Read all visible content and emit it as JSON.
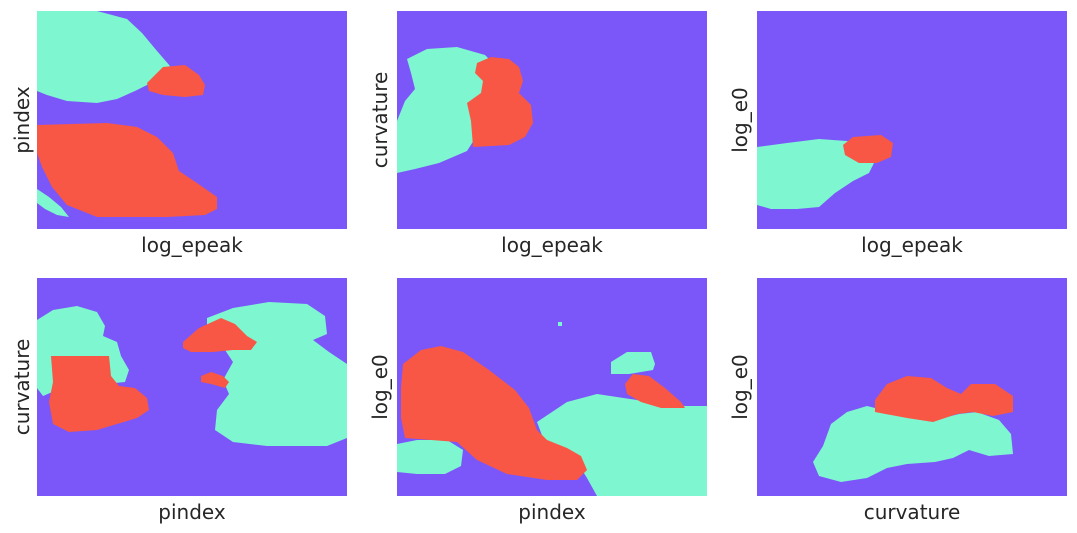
{
  "colors": {
    "background": "#7B57FA",
    "region_1": "#7EF6D0",
    "region_2": "#F85745"
  },
  "chart_data": [
    {
      "type": "heatmap",
      "xlabel": "log_epeak",
      "ylabel": "pindex",
      "levels": [
        0,
        1,
        2
      ]
    },
    {
      "type": "heatmap",
      "xlabel": "log_epeak",
      "ylabel": "curvature",
      "levels": [
        0,
        1,
        2
      ]
    },
    {
      "type": "heatmap",
      "xlabel": "log_epeak",
      "ylabel": "log_e0",
      "levels": [
        0,
        1,
        2
      ]
    },
    {
      "type": "heatmap",
      "xlabel": "pindex",
      "ylabel": "curvature",
      "levels": [
        0,
        1,
        2
      ]
    },
    {
      "type": "heatmap",
      "xlabel": "pindex",
      "ylabel": "log_e0",
      "levels": [
        0,
        1,
        2
      ]
    },
    {
      "type": "heatmap",
      "xlabel": "curvature",
      "ylabel": "log_e0",
      "levels": [
        0,
        1,
        2
      ]
    }
  ]
}
